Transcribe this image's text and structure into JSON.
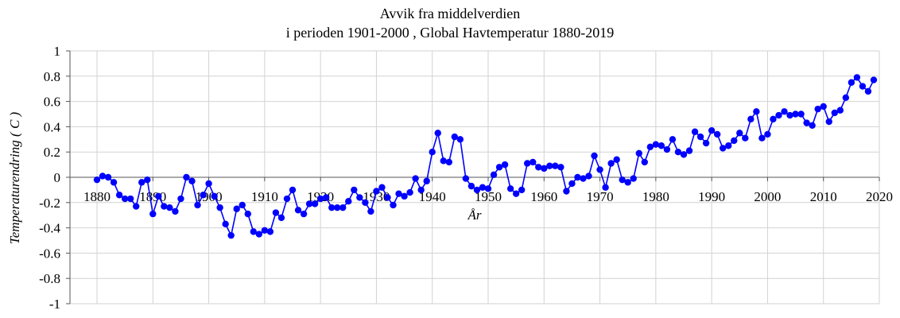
{
  "chart_data": {
    "type": "line",
    "title": "Avvik fra middelverdien",
    "subtitle": "i perioden 1901-2000 , Global Havtemperatur 1880-2019",
    "xlabel": "År",
    "ylabel": "Temperaturendring ( C )",
    "xlim": [
      1875,
      2020
    ],
    "ylim": [
      -1,
      1
    ],
    "x_ticks": [
      1880,
      1890,
      1900,
      1910,
      1920,
      1930,
      1940,
      1950,
      1960,
      1970,
      1980,
      1990,
      2000,
      2010,
      2020
    ],
    "y_ticks": [
      1,
      0.8,
      0.6,
      0.4,
      0.2,
      0,
      -0.2,
      -0.4,
      -0.6,
      -0.8,
      -1
    ],
    "y_tick_labels": [
      "1",
      "0.8",
      "0.6",
      "0.4",
      "0.2",
      "0",
      "-0.2",
      "-0.4",
      "-0.6",
      "-0.8",
      "-1"
    ],
    "grid": true,
    "color": "#0000ff",
    "x": [
      1880,
      1881,
      1882,
      1883,
      1884,
      1885,
      1886,
      1887,
      1888,
      1889,
      1890,
      1891,
      1892,
      1893,
      1894,
      1895,
      1896,
      1897,
      1898,
      1899,
      1900,
      1901,
      1902,
      1903,
      1904,
      1905,
      1906,
      1907,
      1908,
      1909,
      1910,
      1911,
      1912,
      1913,
      1914,
      1915,
      1916,
      1917,
      1918,
      1919,
      1920,
      1921,
      1922,
      1923,
      1924,
      1925,
      1926,
      1927,
      1928,
      1929,
      1930,
      1931,
      1932,
      1933,
      1934,
      1935,
      1936,
      1937,
      1938,
      1939,
      1940,
      1941,
      1942,
      1943,
      1944,
      1945,
      1946,
      1947,
      1948,
      1949,
      1950,
      1951,
      1952,
      1953,
      1954,
      1955,
      1956,
      1957,
      1958,
      1959,
      1960,
      1961,
      1962,
      1963,
      1964,
      1965,
      1966,
      1967,
      1968,
      1969,
      1970,
      1971,
      1972,
      1973,
      1974,
      1975,
      1976,
      1977,
      1978,
      1979,
      1980,
      1981,
      1982,
      1983,
      1984,
      1985,
      1986,
      1987,
      1988,
      1989,
      1990,
      1991,
      1992,
      1993,
      1994,
      1995,
      1996,
      1997,
      1998,
      1999,
      2000,
      2001,
      2002,
      2003,
      2004,
      2005,
      2006,
      2007,
      2008,
      2009,
      2010,
      2011,
      2012,
      2013,
      2014,
      2015,
      2016,
      2017,
      2018,
      2019
    ],
    "y": [
      -0.02,
      0.01,
      0.0,
      -0.04,
      -0.14,
      -0.17,
      -0.17,
      -0.23,
      -0.04,
      -0.02,
      -0.29,
      -0.15,
      -0.23,
      -0.24,
      -0.27,
      -0.17,
      0.0,
      -0.03,
      -0.22,
      -0.14,
      -0.05,
      -0.15,
      -0.24,
      -0.37,
      -0.46,
      -0.25,
      -0.22,
      -0.29,
      -0.43,
      -0.45,
      -0.42,
      -0.43,
      -0.28,
      -0.32,
      -0.17,
      -0.1,
      -0.26,
      -0.29,
      -0.21,
      -0.21,
      -0.17,
      -0.16,
      -0.24,
      -0.24,
      -0.24,
      -0.19,
      -0.1,
      -0.16,
      -0.2,
      -0.27,
      -0.11,
      -0.08,
      -0.16,
      -0.22,
      -0.13,
      -0.15,
      -0.12,
      -0.01,
      -0.1,
      -0.03,
      0.2,
      0.35,
      0.13,
      0.12,
      0.32,
      0.3,
      -0.01,
      -0.07,
      -0.1,
      -0.08,
      -0.09,
      0.02,
      0.08,
      0.1,
      -0.09,
      -0.13,
      -0.1,
      0.11,
      0.12,
      0.08,
      0.07,
      0.09,
      0.09,
      0.08,
      -0.11,
      -0.05,
      0.0,
      -0.01,
      0.01,
      0.17,
      0.06,
      -0.08,
      0.11,
      0.14,
      -0.02,
      -0.04,
      -0.01,
      0.19,
      0.12,
      0.24,
      0.26,
      0.25,
      0.22,
      0.3,
      0.2,
      0.18,
      0.21,
      0.36,
      0.32,
      0.27,
      0.37,
      0.34,
      0.23,
      0.25,
      0.29,
      0.35,
      0.31,
      0.46,
      0.52,
      0.31,
      0.34,
      0.46,
      0.49,
      0.52,
      0.49,
      0.5,
      0.5,
      0.43,
      0.41,
      0.54,
      0.56,
      0.44,
      0.51,
      0.53,
      0.63,
      0.75,
      0.79,
      0.72,
      0.68,
      0.77
    ]
  }
}
